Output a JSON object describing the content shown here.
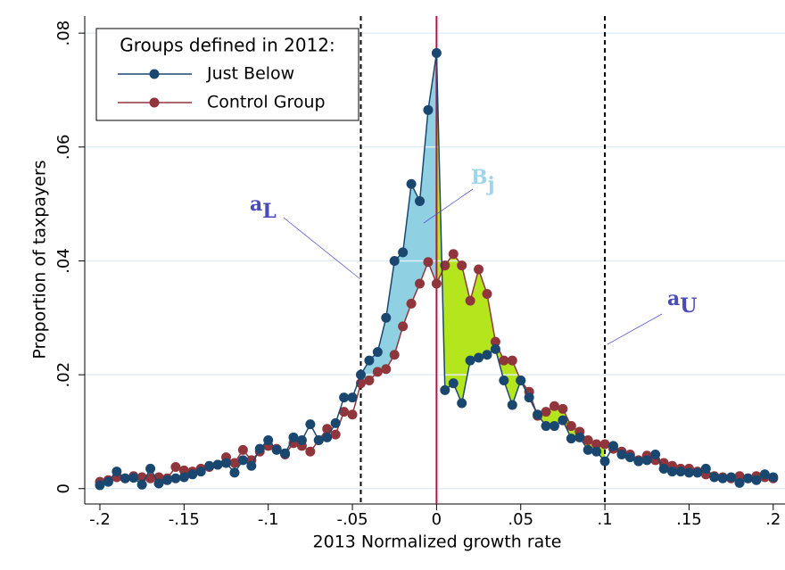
{
  "chart_data": {
    "type": "line",
    "xlabel": "2013 Normalized growth rate",
    "ylabel": "Proportion of taxpayers",
    "legend_title": "Groups defined in 2012:",
    "legend_position": "upper left",
    "grid": true,
    "xlim": [
      -0.209,
      0.207
    ],
    "ylim": [
      -0.0027,
      0.083
    ],
    "xticks": [
      {
        "value": -0.2,
        "label": "-.2"
      },
      {
        "value": -0.15,
        "label": "-.15"
      },
      {
        "value": -0.1,
        "label": "-.1"
      },
      {
        "value": -0.05,
        "label": "-.05"
      },
      0,
      {
        "value": 0.05,
        "label": ".05"
      },
      {
        "value": 0.1,
        "label": ".1"
      },
      {
        "value": 0.15,
        "label": ".15"
      },
      {
        "value": 0.2,
        "label": ".2"
      }
    ],
    "yticks": [
      0,
      {
        "value": 0.02,
        "label": ".02"
      },
      {
        "value": 0.04,
        "label": ".04"
      },
      {
        "value": 0.06,
        "label": ".06"
      },
      {
        "value": 0.08,
        "label": ".08"
      }
    ],
    "x": [
      -0.2,
      -0.195,
      -0.19,
      -0.185,
      -0.18,
      -0.175,
      -0.17,
      -0.165,
      -0.16,
      -0.155,
      -0.15,
      -0.145,
      -0.14,
      -0.135,
      -0.13,
      -0.125,
      -0.12,
      -0.115,
      -0.11,
      -0.105,
      -0.1,
      -0.095,
      -0.09,
      -0.085,
      -0.08,
      -0.075,
      -0.07,
      -0.065,
      -0.06,
      -0.055,
      -0.05,
      -0.045,
      -0.04,
      -0.035,
      -0.03,
      -0.025,
      -0.02,
      -0.015,
      -0.01,
      -0.005,
      0,
      0.005,
      0.01,
      0.015,
      0.02,
      0.025,
      0.03,
      0.035,
      0.04,
      0.045,
      0.05,
      0.055,
      0.06,
      0.065,
      0.07,
      0.075,
      0.08,
      0.085,
      0.09,
      0.095,
      0.1,
      0.105,
      0.11,
      0.115,
      0.12,
      0.125,
      0.13,
      0.135,
      0.14,
      0.145,
      0.15,
      0.155,
      0.16,
      0.165,
      0.17,
      0.175,
      0.18,
      0.185,
      0.19,
      0.195,
      0.2
    ],
    "series": [
      {
        "name": "Just Below",
        "color": "#1a476f",
        "values": [
          0.0006,
          0.0012,
          0.003,
          0.0018,
          0.0019,
          0.0007,
          0.0035,
          0.0009,
          0.0015,
          0.0018,
          0.002,
          0.0025,
          0.003,
          0.004,
          0.0042,
          0.0045,
          0.0028,
          0.005,
          0.004,
          0.007,
          0.0085,
          0.0068,
          0.0062,
          0.009,
          0.0085,
          0.0113,
          0.0085,
          0.009,
          0.0115,
          0.016,
          0.016,
          0.02,
          0.0225,
          0.024,
          0.03,
          0.04,
          0.0415,
          0.0535,
          0.0505,
          0.0665,
          0.0765,
          0.0173,
          0.0185,
          0.015,
          0.0225,
          0.023,
          0.0235,
          0.0245,
          0.019,
          0.0147,
          0.019,
          0.016,
          0.013,
          0.011,
          0.011,
          0.012,
          0.0088,
          0.009,
          0.0068,
          0.0065,
          0.0048,
          0.0075,
          0.006,
          0.0055,
          0.0048,
          0.005,
          0.006,
          0.0035,
          0.003,
          0.003,
          0.0028,
          0.0028,
          0.0035,
          0.002,
          0.0018,
          0.002,
          0.001,
          0.0018,
          0.0015,
          0.0025,
          0.002
        ]
      },
      {
        "name": "Control Group",
        "color": "#90353b",
        "values": [
          0.0012,
          0.0015,
          0.002,
          0.0018,
          0.0022,
          0.002,
          0.0018,
          0.002,
          0.0018,
          0.0038,
          0.0032,
          0.003,
          0.0035,
          0.0038,
          0.0042,
          0.0055,
          0.0045,
          0.0068,
          0.005,
          0.0065,
          0.0075,
          0.007,
          0.006,
          0.008,
          0.0075,
          0.0065,
          0.0085,
          0.0105,
          0.0095,
          0.0135,
          0.013,
          0.0185,
          0.019,
          0.0205,
          0.021,
          0.0235,
          0.0285,
          0.0325,
          0.036,
          0.0398,
          0.036,
          0.0392,
          0.0412,
          0.0392,
          0.033,
          0.0385,
          0.0342,
          0.0258,
          0.0225,
          0.0225,
          0.019,
          0.017,
          0.0128,
          0.0135,
          0.0145,
          0.014,
          0.011,
          0.01,
          0.0085,
          0.0078,
          0.0078,
          0.007,
          0.0065,
          0.006,
          0.005,
          0.0058,
          0.005,
          0.0045,
          0.004,
          0.0035,
          0.0035,
          0.003,
          0.0025,
          0.0022,
          0.002,
          0.0018,
          0.0022,
          0.0018,
          0.0022,
          0.002,
          0.0018
        ]
      }
    ],
    "vlines": [
      {
        "value": -0.045,
        "color": "#000000",
        "style": "dashed"
      },
      {
        "value": 0,
        "color": "#b0174a",
        "style": "solid"
      },
      {
        "value": 0.1,
        "color": "#000000",
        "style": "dashed"
      }
    ],
    "shaded": [
      {
        "from": -0.045,
        "to": 0,
        "color": "#8fd0e3"
      },
      {
        "from": 0,
        "to": 0.1,
        "color": "#b5e61d"
      }
    ],
    "annotations": [
      {
        "text": "a",
        "subscript": "L",
        "color": "#4a4ab8"
      },
      {
        "text": "B",
        "subscript": "j",
        "color": "#9fd4ea"
      },
      {
        "text": "a",
        "subscript": "U",
        "color": "#4a4ab8"
      }
    ]
  }
}
